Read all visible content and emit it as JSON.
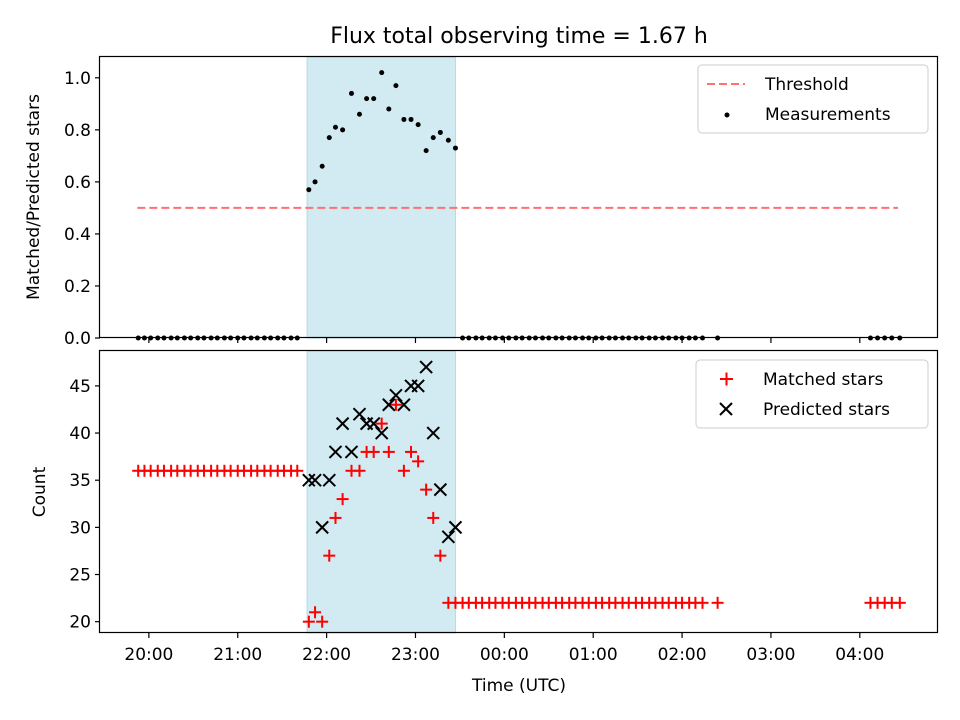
{
  "chart_data": [
    {
      "type": "scatter",
      "title": "Flux total observing time = 1.67 h",
      "xlabel": "",
      "ylabel": "Matched/Predicted stars",
      "ylim": [
        0,
        1.08
      ],
      "yticks": [
        "0.0",
        "0.2",
        "0.4",
        "0.6",
        "0.8",
        "1.0"
      ],
      "ytick_values": [
        0,
        0.2,
        0.4,
        0.6,
        0.8,
        1.0
      ],
      "x_unit": "hours after 20:00 UTC",
      "xlim": [
        -0.55,
        8.88
      ],
      "shaded_span": [
        1.78,
        3.45
      ],
      "shade_color": "#add8e6",
      "legend_position": "upper right",
      "threshold": {
        "name": "Threshold",
        "value": 0.5,
        "x_range": [
          -0.13,
          8.43
        ],
        "color": "#ff7070"
      },
      "measurements": {
        "name": "Measurements",
        "color": "#000000",
        "x": [
          -0.12,
          -0.05,
          0.02,
          0.1,
          0.17,
          0.25,
          0.32,
          0.4,
          0.47,
          0.55,
          0.62,
          0.7,
          0.77,
          0.85,
          0.92,
          1.0,
          1.07,
          1.15,
          1.22,
          1.3,
          1.37,
          1.45,
          1.52,
          1.6,
          1.67,
          1.8,
          1.87,
          1.95,
          2.03,
          2.1,
          2.18,
          2.28,
          2.37,
          2.45,
          2.53,
          2.62,
          2.7,
          2.78,
          2.87,
          2.95,
          3.03,
          3.12,
          3.2,
          3.28,
          3.37,
          3.45,
          3.53,
          3.6,
          3.68,
          3.75,
          3.83,
          3.9,
          3.98,
          4.05,
          4.13,
          4.2,
          4.28,
          4.35,
          4.43,
          4.5,
          4.58,
          4.65,
          4.73,
          4.8,
          4.88,
          4.95,
          5.03,
          5.1,
          5.18,
          5.25,
          5.33,
          5.4,
          5.48,
          5.55,
          5.63,
          5.7,
          5.78,
          5.85,
          5.93,
          6.0,
          6.08,
          6.15,
          6.23,
          6.4,
          8.12,
          8.2,
          8.28,
          8.36,
          8.45
        ],
        "y": [
          0,
          0,
          0,
          0,
          0,
          0,
          0,
          0,
          0,
          0,
          0,
          0,
          0,
          0,
          0,
          0,
          0,
          0,
          0,
          0,
          0,
          0,
          0,
          0,
          0,
          0.57,
          0.6,
          0.66,
          0.77,
          0.81,
          0.8,
          0.94,
          0.86,
          0.92,
          0.92,
          1.02,
          0.88,
          0.97,
          0.84,
          0.84,
          0.82,
          0.72,
          0.77,
          0.79,
          0.76,
          0.73,
          0,
          0,
          0,
          0,
          0,
          0,
          0,
          0,
          0,
          0,
          0,
          0,
          0,
          0,
          0,
          0,
          0,
          0,
          0,
          0,
          0,
          0,
          0,
          0,
          0,
          0,
          0,
          0,
          0,
          0,
          0,
          0,
          0,
          0,
          0,
          0,
          0,
          0,
          0,
          0,
          0,
          0,
          0
        ]
      }
    },
    {
      "type": "scatter",
      "title": "",
      "xlabel": "Time (UTC)",
      "ylabel": "Count",
      "ylim": [
        18.8,
        48.7
      ],
      "yticks": [
        "20",
        "25",
        "30",
        "35",
        "40",
        "45"
      ],
      "ytick_values": [
        20,
        25,
        30,
        35,
        40,
        45
      ],
      "xticks": [
        "20:00",
        "21:00",
        "22:00",
        "23:00",
        "00:00",
        "01:00",
        "02:00",
        "03:00",
        "04:00"
      ],
      "xtick_values": [
        0,
        1,
        2,
        3,
        4,
        5,
        6,
        7,
        8
      ],
      "x_unit": "hours after 20:00 UTC",
      "xlim": [
        -0.55,
        8.88
      ],
      "shaded_span": [
        1.78,
        3.45
      ],
      "legend_position": "upper right",
      "series": [
        {
          "name": "Matched stars",
          "marker": "+",
          "color": "#ff0000",
          "x": [
            -0.12,
            -0.05,
            0.02,
            0.1,
            0.17,
            0.25,
            0.32,
            0.4,
            0.47,
            0.55,
            0.62,
            0.7,
            0.77,
            0.85,
            0.92,
            1.0,
            1.07,
            1.15,
            1.22,
            1.3,
            1.37,
            1.45,
            1.52,
            1.6,
            1.67,
            1.8,
            1.87,
            1.95,
            2.03,
            2.1,
            2.18,
            2.28,
            2.37,
            2.45,
            2.53,
            2.62,
            2.7,
            2.78,
            2.87,
            2.95,
            3.03,
            3.12,
            3.2,
            3.28,
            3.37,
            3.45,
            3.53,
            3.6,
            3.68,
            3.75,
            3.83,
            3.9,
            3.98,
            4.05,
            4.13,
            4.2,
            4.28,
            4.35,
            4.43,
            4.5,
            4.58,
            4.65,
            4.73,
            4.8,
            4.88,
            4.95,
            5.03,
            5.1,
            5.18,
            5.25,
            5.33,
            5.4,
            5.48,
            5.55,
            5.63,
            5.7,
            5.78,
            5.85,
            5.93,
            6.0,
            6.08,
            6.15,
            6.23,
            6.4,
            8.12,
            8.2,
            8.28,
            8.36,
            8.45
          ],
          "y": [
            36,
            36,
            36,
            36,
            36,
            36,
            36,
            36,
            36,
            36,
            36,
            36,
            36,
            36,
            36,
            36,
            36,
            36,
            36,
            36,
            36,
            36,
            36,
            36,
            36,
            20,
            21,
            20,
            27,
            31,
            33,
            36,
            36,
            38,
            38,
            41,
            38,
            43,
            36,
            38,
            37,
            34,
            31,
            27,
            22,
            22,
            22,
            22,
            22,
            22,
            22,
            22,
            22,
            22,
            22,
            22,
            22,
            22,
            22,
            22,
            22,
            22,
            22,
            22,
            22,
            22,
            22,
            22,
            22,
            22,
            22,
            22,
            22,
            22,
            22,
            22,
            22,
            22,
            22,
            22,
            22,
            22,
            22,
            22,
            22,
            22,
            22,
            22,
            22
          ]
        },
        {
          "name": "Predicted stars",
          "marker": "x",
          "color": "#000000",
          "x": [
            1.8,
            1.87,
            1.95,
            2.03,
            2.1,
            2.18,
            2.28,
            2.37,
            2.45,
            2.53,
            2.62,
            2.7,
            2.78,
            2.87,
            2.95,
            3.03,
            3.12,
            3.2,
            3.28,
            3.37,
            3.45
          ],
          "y": [
            35,
            35,
            30,
            35,
            38,
            41,
            38,
            42,
            41,
            41,
            40,
            43,
            44,
            43,
            45,
            45,
            47,
            40,
            34,
            29,
            30
          ]
        }
      ]
    }
  ]
}
